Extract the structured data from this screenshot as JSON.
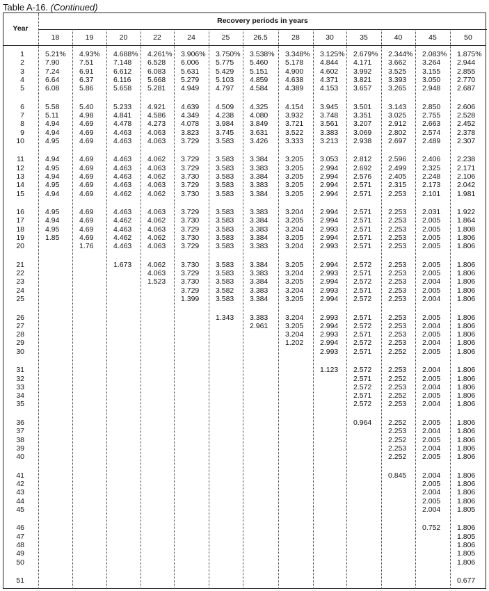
{
  "title": {
    "label": "Table A-16.",
    "suffix": "(Continued)"
  },
  "table": {
    "year_header": "Year",
    "group_header": "Recovery periods in years",
    "years": [
      "1",
      "2",
      "3",
      "4",
      "5",
      "6",
      "7",
      "8",
      "9",
      "10",
      "11",
      "12",
      "13",
      "14",
      "15",
      "16",
      "17",
      "18",
      "19",
      "20",
      "21",
      "22",
      "23",
      "24",
      "25",
      "26",
      "27",
      "28",
      "29",
      "30",
      "31",
      "32",
      "33",
      "34",
      "35",
      "36",
      "37",
      "38",
      "39",
      "40",
      "41",
      "42",
      "43",
      "44",
      "45",
      "46",
      "47",
      "48",
      "49",
      "50",
      "51"
    ],
    "columns": [
      {
        "header": "18",
        "values": [
          "5.21%",
          "7.90",
          "7.24",
          "6.64",
          "6.08",
          "5.58",
          "5.11",
          "4.94",
          "4.94",
          "4.95",
          "4.94",
          "4.95",
          "4.94",
          "4.95",
          "4.94",
          "4.95",
          "4.94",
          "4.95",
          "1.85"
        ]
      },
      {
        "header": "19",
        "values": [
          "4.93%",
          "7.51",
          "6.91",
          "6.37",
          "5.86",
          "5.40",
          "4.98",
          "4.69",
          "4.69",
          "4.69",
          "4.69",
          "4.69",
          "4.69",
          "4.69",
          "4.69",
          "4.69",
          "4.69",
          "4.69",
          "4.69",
          "1.76"
        ]
      },
      {
        "header": "20",
        "values": [
          "4.688%",
          "7.148",
          "6.612",
          "6.116",
          "5.658",
          "5.233",
          "4.841",
          "4.478",
          "4.463",
          "4.463",
          "4.463",
          "4.463",
          "4.463",
          "4.463",
          "4.462",
          "4.463",
          "4.462",
          "4.463",
          "4.462",
          "4.463",
          "1.673"
        ]
      },
      {
        "header": "22",
        "values": [
          "4.261%",
          "6.528",
          "6.083",
          "5.668",
          "5.281",
          "4.921",
          "4.586",
          "4.273",
          "4.063",
          "4.063",
          "4.062",
          "4.063",
          "4.062",
          "4.063",
          "4.062",
          "4.063",
          "4.062",
          "4.063",
          "4.062",
          "4.063",
          "4.062",
          "4.063",
          "1.523"
        ]
      },
      {
        "header": "24",
        "values": [
          "3.906%",
          "6.006",
          "5.631",
          "5.279",
          "4.949",
          "4.639",
          "4.349",
          "4.078",
          "3.823",
          "3.729",
          "3.729",
          "3.729",
          "3.730",
          "3.729",
          "3.730",
          "3.729",
          "3.730",
          "3.729",
          "3.730",
          "3.729",
          "3.730",
          "3.729",
          "3.730",
          "3.729",
          "1.399"
        ]
      },
      {
        "header": "25",
        "values": [
          "3.750%",
          "5.775",
          "5.429",
          "5.103",
          "4.797",
          "4.509",
          "4.238",
          "3.984",
          "3.745",
          "3.583",
          "3.583",
          "3.583",
          "3.583",
          "3.583",
          "3.583",
          "3.583",
          "3.583",
          "3.583",
          "3.583",
          "3.583",
          "3.583",
          "3.583",
          "3.583",
          "3.582",
          "3.583",
          "1.343"
        ]
      },
      {
        "header": "26.5",
        "values": [
          "3.538%",
          "5.460",
          "5.151",
          "4.859",
          "4.584",
          "4.325",
          "4.080",
          "3.849",
          "3.631",
          "3.426",
          "3.384",
          "3.383",
          "3.384",
          "3.383",
          "3.384",
          "3.383",
          "3.384",
          "3.383",
          "3.384",
          "3.383",
          "3.384",
          "3.383",
          "3.384",
          "3.383",
          "3.384",
          "3.383",
          "2.961"
        ]
      },
      {
        "header": "28",
        "values": [
          "3.348%",
          "5.178",
          "4.900",
          "4.638",
          "4.389",
          "4.154",
          "3.932",
          "3.721",
          "3.522",
          "3.333",
          "3.205",
          "3.205",
          "3.205",
          "3.205",
          "3.205",
          "3.204",
          "3.205",
          "3.204",
          "3.205",
          "3.204",
          "3.205",
          "3.204",
          "3.205",
          "3.204",
          "3.205",
          "3.204",
          "3.205",
          "3.204",
          "1.202"
        ]
      },
      {
        "header": "30",
        "values": [
          "3.125%",
          "4.844",
          "4.602",
          "4.371",
          "4.153",
          "3.945",
          "3.748",
          "3.561",
          "3.383",
          "3.213",
          "3.053",
          "2.994",
          "2.994",
          "2.994",
          "2.994",
          "2.994",
          "2.994",
          "2.993",
          "2.994",
          "2.993",
          "2.994",
          "2.993",
          "2.994",
          "2.993",
          "2.994",
          "2.993",
          "2.994",
          "2.993",
          "2.994",
          "2.993",
          "1.123"
        ]
      },
      {
        "header": "35",
        "values": [
          "2.679%",
          "4.171",
          "3.992",
          "3.821",
          "3.657",
          "3.501",
          "3.351",
          "3.207",
          "3.069",
          "2.938",
          "2.812",
          "2.692",
          "2.576",
          "2.571",
          "2.571",
          "2.571",
          "2.571",
          "2.571",
          "2.571",
          "2.571",
          "2.572",
          "2.571",
          "2.572",
          "2.571",
          "2.572",
          "2.571",
          "2.572",
          "2.571",
          "2.572",
          "2.571",
          "2.572",
          "2.571",
          "2.572",
          "2.571",
          "2.572",
          "0.964"
        ]
      },
      {
        "header": "40",
        "values": [
          "2.344%",
          "3.662",
          "3.525",
          "3.393",
          "3.265",
          "3.143",
          "3.025",
          "2.912",
          "2.802",
          "2.697",
          "2.596",
          "2.499",
          "2.405",
          "2.315",
          "2.253",
          "2.253",
          "2.253",
          "2.253",
          "2.253",
          "2.253",
          "2.253",
          "2.253",
          "2.253",
          "2.253",
          "2.253",
          "2.253",
          "2.253",
          "2.253",
          "2.253",
          "2.252",
          "2.253",
          "2.252",
          "2.253",
          "2.252",
          "2.253",
          "2.252",
          "2.253",
          "2.252",
          "2.253",
          "2.252",
          "0.845"
        ]
      },
      {
        "header": "45",
        "values": [
          "2.083%",
          "3.264",
          "3.155",
          "3.050",
          "2.948",
          "2.850",
          "2.755",
          "2.663",
          "2.574",
          "2.489",
          "2.406",
          "2.325",
          "2.248",
          "2.173",
          "2.101",
          "2.031",
          "2.005",
          "2.005",
          "2.005",
          "2.005",
          "2.005",
          "2.005",
          "2.004",
          "2.005",
          "2.004",
          "2.005",
          "2.004",
          "2.005",
          "2.004",
          "2.005",
          "2.004",
          "2.005",
          "2.004",
          "2.005",
          "2.004",
          "2.005",
          "2.004",
          "2.005",
          "2.004",
          "2.005",
          "2.004",
          "2.005",
          "2.004",
          "2.005",
          "2.004",
          "0.752"
        ]
      },
      {
        "header": "50",
        "values": [
          "1.875%",
          "2.944",
          "2.855",
          "2.770",
          "2.687",
          "2.606",
          "2.528",
          "2.452",
          "2.378",
          "2.307",
          "2.238",
          "2.171",
          "2.106",
          "2.042",
          "1.981",
          "1.922",
          "1.864",
          "1.808",
          "1.806",
          "1.806",
          "1.806",
          "1.806",
          "1.806",
          "1.806",
          "1.806",
          "1.806",
          "1.806",
          "1.806",
          "1.806",
          "1.806",
          "1.806",
          "1.806",
          "1.806",
          "1.806",
          "1.806",
          "1.806",
          "1.806",
          "1.806",
          "1.806",
          "1.806",
          "1.806",
          "1.806",
          "1.806",
          "1.806",
          "1.805",
          "1.806",
          "1.805",
          "1.806",
          "1.805",
          "1.806",
          "0.677"
        ]
      }
    ]
  }
}
